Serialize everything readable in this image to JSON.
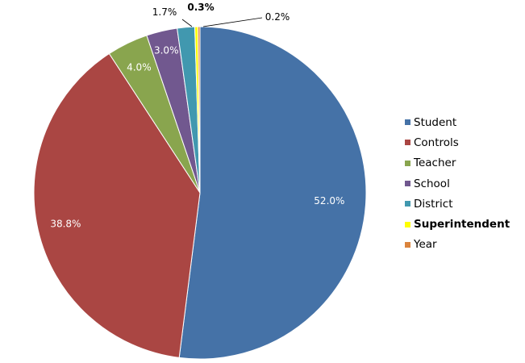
{
  "chart_data": {
    "type": "pie",
    "title": "",
    "categories": [
      "Student",
      "Controls",
      "Teacher",
      "School",
      "District",
      "Superintendent",
      "Year"
    ],
    "values": [
      52.0,
      38.8,
      4.0,
      3.0,
      1.7,
      0.3,
      0.2
    ],
    "labels": [
      "52.0%",
      "38.8%",
      "4.0%",
      "3.0%",
      "1.7%",
      "0.3%",
      "0.2%"
    ],
    "colors": [
      "#4572A7",
      "#AA4643",
      "#89A54E",
      "#71588F",
      "#4198AF",
      "#FFFF00",
      "#DB843D"
    ],
    "bold": [
      false,
      false,
      false,
      false,
      false,
      true,
      false
    ],
    "legend_position": "right"
  }
}
